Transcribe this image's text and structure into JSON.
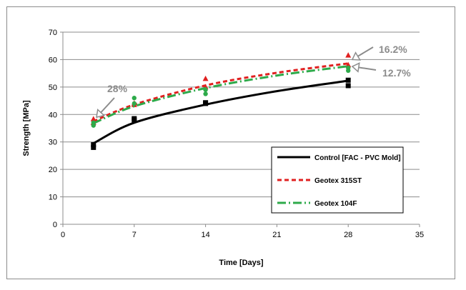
{
  "chart_data": {
    "type": "scatter",
    "title": "",
    "xlabel": "Time [Days]",
    "ylabel": "Strength [MPa]",
    "xlim": [
      0,
      35
    ],
    "ylim": [
      0,
      70
    ],
    "xticks": [
      0,
      7,
      14,
      21,
      28,
      35
    ],
    "yticks": [
      0,
      10,
      20,
      30,
      40,
      50,
      60,
      70
    ],
    "grid": "horizontal",
    "legend_position": "bottom-right",
    "series": [
      {
        "name": "Control [FAC - PVC Mold]",
        "color": "#000000",
        "marker": "square",
        "line_style": "solid",
        "points": [
          [
            3,
            28
          ],
          [
            3,
            29
          ],
          [
            7,
            38
          ],
          [
            7,
            38.5
          ],
          [
            14,
            44
          ],
          [
            14,
            44.3
          ],
          [
            28,
            50.5
          ],
          [
            28,
            52.5
          ]
        ],
        "trend": [
          [
            3,
            29.5
          ],
          [
            7,
            37
          ],
          [
            14,
            43.6
          ],
          [
            21,
            48.5
          ],
          [
            28,
            52.3
          ]
        ]
      },
      {
        "name": "Geotex 315ST",
        "color": "#e02020",
        "marker": "triangle",
        "line_style": "dashed",
        "points": [
          [
            3,
            38.3
          ],
          [
            3,
            37
          ],
          [
            7,
            44
          ],
          [
            7,
            43.5
          ],
          [
            14,
            53
          ],
          [
            14,
            50
          ],
          [
            28,
            61.5
          ],
          [
            28,
            58
          ]
        ],
        "trend": [
          [
            3,
            37.5
          ],
          [
            7,
            43.6
          ],
          [
            14,
            50.6
          ],
          [
            21,
            55.2
          ],
          [
            28,
            58.6
          ]
        ]
      },
      {
        "name": "Geotex 104F",
        "color": "#2eaa4a",
        "marker": "circle",
        "line_style": "dash-dot",
        "points": [
          [
            3,
            36
          ],
          [
            3,
            37
          ],
          [
            7,
            46
          ],
          [
            7,
            44
          ],
          [
            14,
            47.5
          ],
          [
            14,
            49
          ],
          [
            28,
            56
          ],
          [
            28,
            57
          ]
        ],
        "trend": [
          [
            3,
            36.8
          ],
          [
            7,
            43
          ],
          [
            14,
            49.6
          ],
          [
            21,
            54.2
          ],
          [
            28,
            57.6
          ]
        ]
      }
    ],
    "annotations": [
      {
        "text": "28%",
        "arrow_to": [
          3.3,
          39
        ]
      },
      {
        "text": "16.2%",
        "arrow_to": [
          28.4,
          60
        ]
      },
      {
        "text": "12.7%",
        "arrow_to": [
          28.4,
          57.5
        ]
      }
    ]
  }
}
